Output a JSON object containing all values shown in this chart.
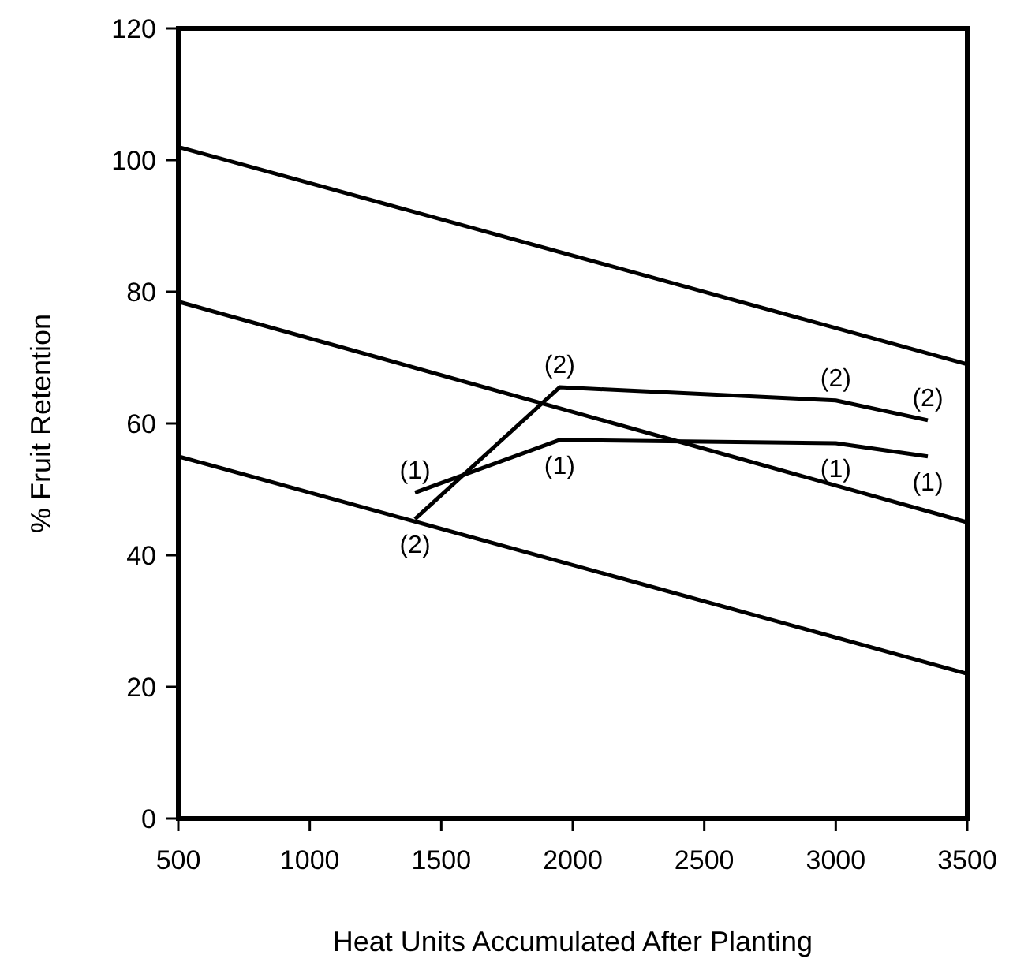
{
  "chart_data": {
    "type": "line",
    "xlabel": "Heat Units Accumulated After Planting",
    "ylabel": "% Fruit Retention",
    "xlim": [
      500,
      3500
    ],
    "xticks": [
      500,
      1000,
      1500,
      2000,
      2500,
      3000,
      3500
    ],
    "ylim": [
      0,
      120
    ],
    "yticks": [
      0,
      20,
      40,
      60,
      80,
      100,
      120
    ],
    "grid": false,
    "marker": "none",
    "series": [
      {
        "color": "#000000",
        "x": [
          1400,
          1950,
          3000,
          3350
        ],
        "values": [
          49.5,
          57.5,
          57,
          55
        ]
      },
      {
        "color": "#000000",
        "x": [
          1400,
          1950,
          3000,
          3350
        ],
        "values": [
          45.5,
          65.5,
          63.5,
          60.5
        ]
      },
      {
        "color": "#000000",
        "x": [
          500,
          3500
        ],
        "values": [
          102,
          69
        ]
      },
      {
        "color": "#000000",
        "x": [
          500,
          3500
        ],
        "values": [
          78.5,
          45
        ]
      },
      {
        "color": "#000000",
        "x": [
          500,
          3500
        ],
        "values": [
          55,
          22
        ]
      }
    ],
    "annotations": [
      {
        "text": "(1)",
        "x": 1400,
        "y": 49.5
      },
      {
        "text": "(1)",
        "x": 1950,
        "y": 57.5
      },
      {
        "text": "(1)",
        "x": 3000,
        "y": 57
      },
      {
        "text": "(1)",
        "x": 3350,
        "y": 55
      },
      {
        "text": "(2)",
        "x": 1400,
        "y": 45.5
      },
      {
        "text": "(2)",
        "x": 1950,
        "y": 65.5
      },
      {
        "text": "(2)",
        "x": 3000,
        "y": 63.5
      },
      {
        "text": "(2)",
        "x": 3350,
        "y": 60.5
      }
    ]
  }
}
